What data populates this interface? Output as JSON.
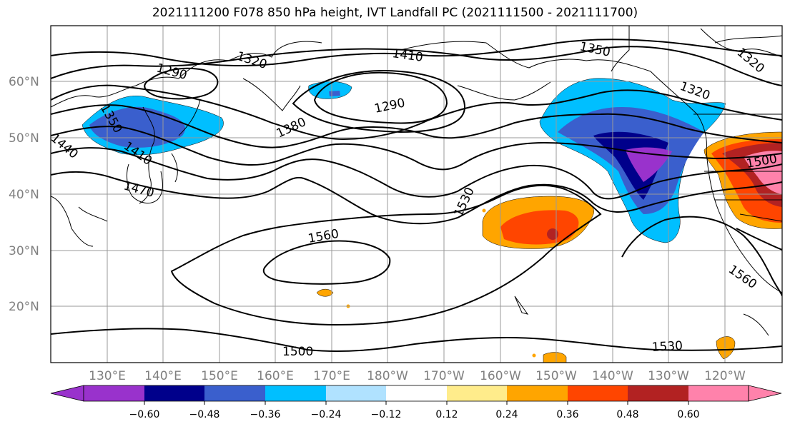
{
  "title": "2021111200 F078 850 hPa height, IVT Landfall PC (2021111500 - 2021111700)",
  "lon_ticks": [
    "130°E",
    "140°E",
    "150°E",
    "160°E",
    "170°E",
    "180°W",
    "170°W",
    "160°W",
    "150°W",
    "140°W",
    "130°W",
    "120°W"
  ],
  "lat_ticks": [
    "60°N",
    "50°N",
    "40°N",
    "30°N",
    "20°N"
  ],
  "contour_labels": [
    "1290",
    "1320",
    "1410",
    "1350",
    "1320",
    "1350",
    "1440",
    "1410",
    "1380",
    "1290",
    "1470",
    "1530",
    "1560",
    "1560",
    "1500",
    "1500",
    "1530",
    "1320"
  ],
  "colorbar": {
    "tick_labels": [
      "−0.60",
      "−0.48",
      "−0.36",
      "−0.24",
      "−0.12",
      "0.12",
      "0.24",
      "0.36",
      "0.48",
      "0.60"
    ],
    "colors": [
      "#9932CC",
      "#00008B",
      "#3A5FCD",
      "#00BFFF",
      "#B0E2FF",
      "#FFFFFF",
      "#FFEC8B",
      "#FFA500",
      "#FF4500",
      "#B22222",
      "#FF82AB"
    ]
  }
}
